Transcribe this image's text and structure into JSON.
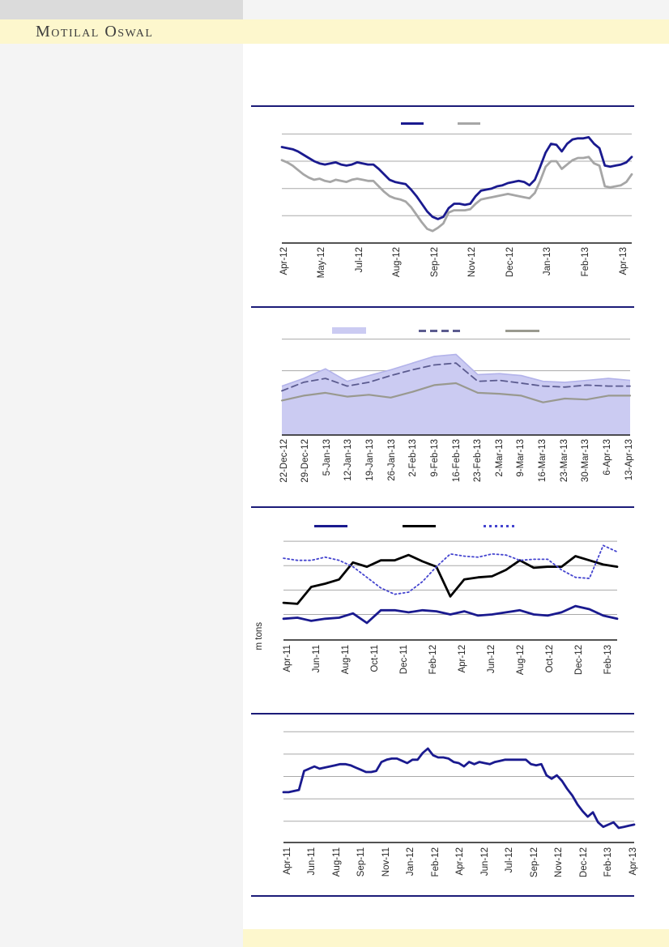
{
  "header": {
    "brand": "Motilal Oswal"
  },
  "theme": {
    "banner_color": "#fdf7cd",
    "topbar_gray": "#dbdbdb",
    "top_strip": "#f4f4f4",
    "sidebar_color": "#f4f4f4",
    "rule_navy": "#1b1b78",
    "gridline_color": "#a9a9a9",
    "axis_color": "#1a1a1a",
    "label_color": "#262626"
  },
  "footer": {
    "bar_color": "#fdf7cd"
  },
  "chart_data": [
    {
      "type": "line",
      "title": "",
      "xlabel": "",
      "ylabel": "",
      "x_labels": [
        "Apr-12",
        "May-12",
        "Jul-12",
        "Aug-12",
        "Sep-12",
        "Nov-12",
        "Dec-12",
        "Jan-13",
        "Feb-13",
        "Apr-13"
      ],
      "y_axis": {
        "tick_labels_visible": false,
        "ylim": [
          0,
          104
        ],
        "gridline_values": [
          25,
          50,
          75,
          100
        ]
      },
      "legend": {
        "position": "top-center",
        "text_visible": false,
        "entries": [
          {
            "label": "",
            "swatch": "solid",
            "color": "#1a1a8f"
          },
          {
            "label": "",
            "swatch": "solid",
            "color": "#a6a6a6"
          }
        ]
      },
      "series": [
        {
          "name": "navy-line",
          "style": "solid",
          "color": "#1a1a8f",
          "width": 2.8,
          "values": [
            88,
            87,
            86,
            84,
            81,
            78,
            75,
            73,
            72,
            73,
            74,
            72,
            71,
            72,
            74,
            73,
            72,
            72,
            68,
            63,
            58,
            56,
            55,
            54,
            49,
            43,
            36,
            29,
            24,
            22,
            24,
            32,
            36,
            36,
            35,
            36,
            43,
            48,
            49,
            50,
            52,
            53,
            55,
            56,
            57,
            56,
            53,
            58,
            70,
            83,
            91,
            90,
            84,
            91,
            95,
            96,
            96,
            97,
            91,
            87,
            71,
            70,
            71,
            72,
            74,
            79
          ]
        },
        {
          "name": "gray-line",
          "style": "solid",
          "color": "#a6a6a6",
          "width": 2.8,
          "values": [
            76,
            74,
            71,
            67,
            63,
            60,
            58,
            59,
            57,
            56,
            58,
            57,
            56,
            58,
            59,
            58,
            57,
            57,
            52,
            47,
            43,
            41,
            40,
            38,
            33,
            26,
            19,
            13,
            11,
            14,
            18,
            28,
            30,
            30,
            30,
            31,
            36,
            40,
            41,
            42,
            43,
            44,
            45,
            44,
            43,
            42,
            41,
            46,
            57,
            70,
            75,
            75,
            68,
            72,
            76,
            78,
            78,
            79,
            73,
            71,
            52,
            51,
            52,
            53,
            56,
            63
          ]
        }
      ]
    },
    {
      "type": "area",
      "title": "",
      "xlabel": "",
      "ylabel": "",
      "x_labels": [
        "22-Dec-12",
        "29-Dec-12",
        "5-Jan-13",
        "12-Jan-13",
        "19-Jan-13",
        "26-Jan-13",
        "2-Feb-13",
        "9-Feb-13",
        "16-Feb-13",
        "23-Feb-13",
        "2-Mar-13",
        "9-Mar-13",
        "16-Mar-13",
        "23-Mar-13",
        "30-Mar-13",
        "6-Apr-13",
        "13-Apr-13"
      ],
      "y_axis": {
        "tick_labels_visible": false,
        "ylim": [
          0,
          103
        ],
        "gridline_values": [
          34,
          67,
          100
        ]
      },
      "legend": {
        "position": "top-center",
        "text_visible": false,
        "entries": [
          {
            "label": "",
            "swatch": "area",
            "color": "#cbcbf2"
          },
          {
            "label": "",
            "swatch": "dashed",
            "color": "#5b5b8f"
          },
          {
            "label": "",
            "swatch": "solid",
            "color": "#99998f"
          }
        ]
      },
      "series": [
        {
          "name": "lavender-band-area",
          "style": "area",
          "color": "#cbcbf2",
          "edge_color": "#b3b3ea",
          "width": 1.6,
          "values": [
            51,
            59,
            69,
            56,
            62,
            68,
            75,
            82,
            84,
            63,
            64,
            62,
            56,
            55,
            57,
            59,
            57
          ]
        },
        {
          "name": "dashed-slate-line",
          "style": "dashed",
          "color": "#5b5b8f",
          "width": 1.8,
          "values": [
            46,
            55,
            59,
            51,
            55,
            62,
            68,
            73,
            75,
            56,
            57,
            54,
            51,
            50,
            52,
            51,
            51
          ]
        },
        {
          "name": "gray-line",
          "style": "solid",
          "color": "#99998f",
          "width": 2.2,
          "values": [
            36,
            41,
            44,
            40,
            42,
            39,
            45,
            52,
            54,
            44,
            43,
            41,
            34,
            38,
            37,
            41,
            41
          ]
        }
      ]
    },
    {
      "type": "line",
      "title": "",
      "xlabel": "",
      "ylabel": "m tons",
      "x_labels": [
        "Apr-11",
        "Jun-11",
        "Aug-11",
        "Oct-11",
        "Dec-11",
        "Feb-12",
        "Apr-12",
        "Jun-12",
        "Aug-12",
        "Oct-12",
        "Dec-12",
        "Feb-13"
      ],
      "y_axis": {
        "tick_labels_visible": false,
        "ylim": [
          0,
          103
        ],
        "gridline_values": [
          24,
          47,
          70,
          93
        ]
      },
      "legend": {
        "position": "top-center",
        "text_visible": false,
        "entries": [
          {
            "label": "",
            "swatch": "solid",
            "color": "#1a1a8f"
          },
          {
            "label": "",
            "swatch": "solid",
            "color": "#000000"
          },
          {
            "label": "",
            "swatch": "dotted",
            "color": "#4444cf"
          }
        ]
      },
      "series": [
        {
          "name": "navy-line",
          "style": "solid",
          "color": "#1a1a8f",
          "width": 2.8,
          "values": [
            20,
            21,
            18,
            20,
            21,
            25,
            16,
            28,
            28,
            26,
            28,
            27,
            24,
            27,
            23,
            24,
            26,
            28,
            24,
            23,
            26,
            32,
            29,
            23,
            20
          ]
        },
        {
          "name": "black-line",
          "style": "solid",
          "color": "#000000",
          "width": 2.8,
          "values": [
            35,
            34,
            50,
            53,
            57,
            73,
            69,
            75,
            75,
            80,
            74,
            69,
            41,
            57,
            59,
            60,
            66,
            75,
            68,
            69,
            69,
            79,
            75,
            71,
            69
          ]
        },
        {
          "name": "dotted-blue-line",
          "style": "dotted",
          "color": "#4444cf",
          "width": 1.8,
          "values": [
            77,
            75,
            75,
            78,
            75,
            69,
            59,
            49,
            43,
            45,
            55,
            69,
            81,
            79,
            78,
            81,
            80,
            75,
            76,
            76,
            66,
            59,
            58,
            89,
            83
          ]
        }
      ]
    },
    {
      "type": "line",
      "title": "",
      "xlabel": "",
      "ylabel": "",
      "x_labels": [
        "Apr-11",
        "Jun-11",
        "Aug-11",
        "Sep-11",
        "Nov-11",
        "Jan-12",
        "Feb-12",
        "Apr-12",
        "Jun-12",
        "Jul-12",
        "Sep-12",
        "Nov-12",
        "Dec-12",
        "Feb-13",
        "Apr-13"
      ],
      "y_axis": {
        "tick_labels_visible": false,
        "ylim": [
          0,
          105
        ],
        "gridline_values": [
          19,
          39,
          59,
          79,
          99
        ]
      },
      "legend": null,
      "series": [
        {
          "name": "navy-line",
          "style": "solid",
          "color": "#1a1a8f",
          "width": 2.8,
          "values": [
            45,
            45,
            46,
            47,
            64,
            66,
            68,
            66,
            67,
            68,
            69,
            70,
            70,
            69,
            67,
            65,
            63,
            63,
            64,
            72,
            74,
            75,
            75,
            73,
            71,
            74,
            74,
            80,
            84,
            78,
            76,
            76,
            75,
            72,
            71,
            68,
            72,
            70,
            72,
            71,
            70,
            72,
            73,
            74,
            74,
            74,
            74,
            74,
            70,
            69,
            70,
            60,
            57,
            60,
            55,
            48,
            42,
            34,
            28,
            23,
            27,
            18,
            14,
            16,
            18,
            13,
            14,
            15,
            16
          ]
        }
      ]
    }
  ]
}
